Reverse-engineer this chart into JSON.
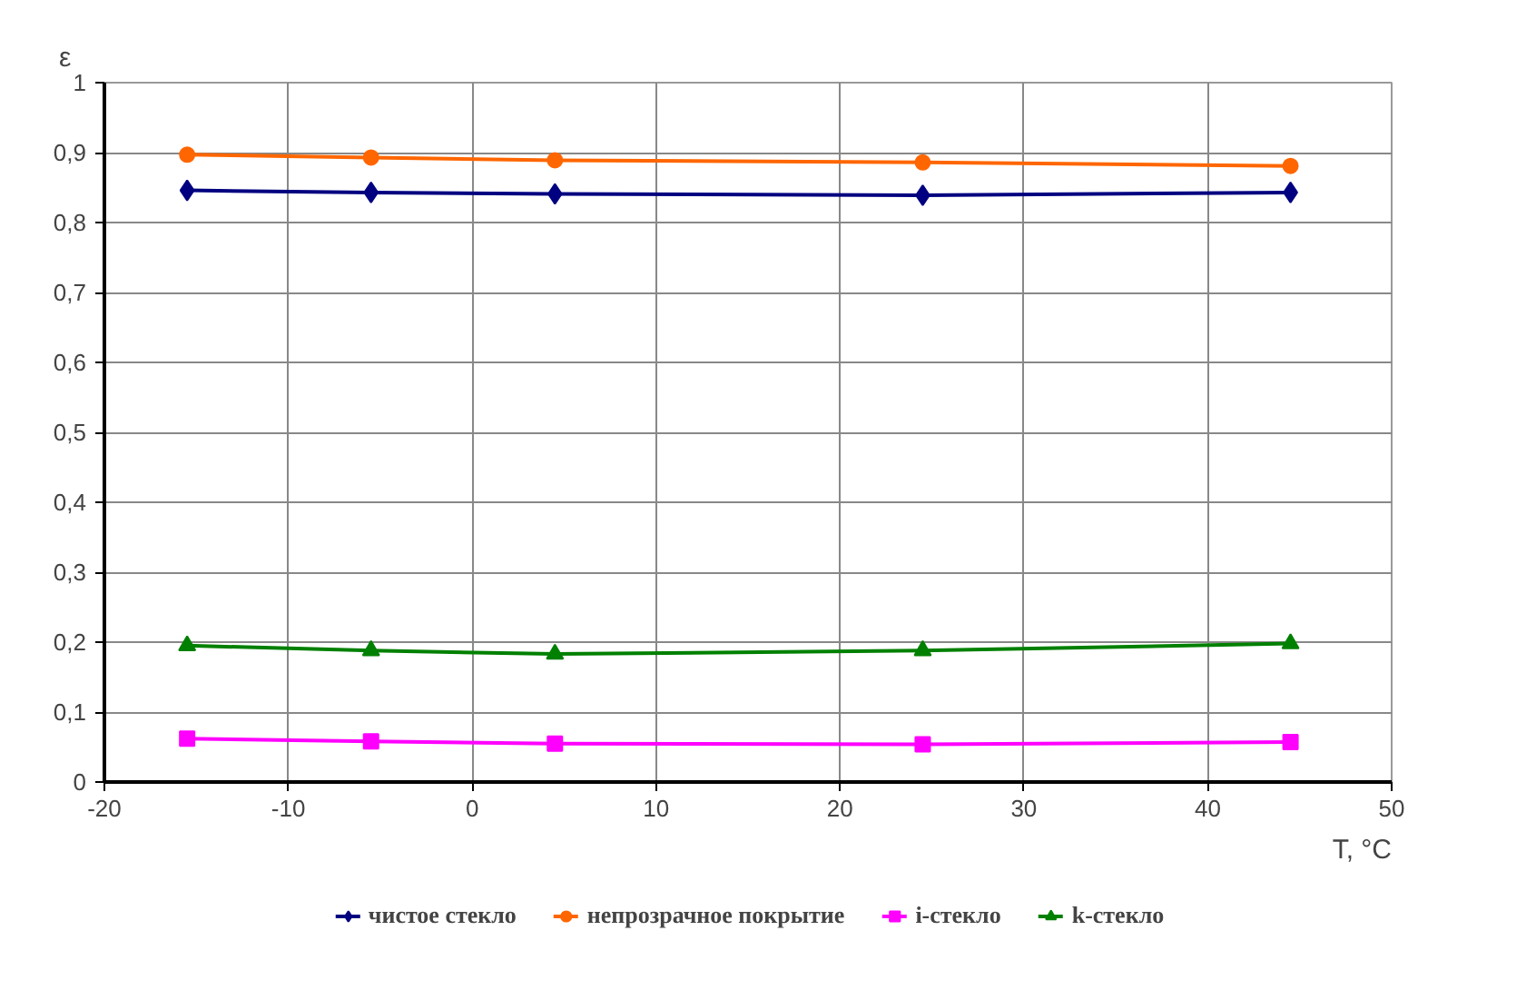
{
  "chart_data": {
    "type": "line",
    "xlabel": "T, °C",
    "ylabel": "ε",
    "x": [
      -15.5,
      -5.5,
      4.5,
      24.5,
      44.5
    ],
    "series": [
      {
        "name": "чистое стекло",
        "color": "#000080",
        "marker": "diamond",
        "values": [
          0.846,
          0.843,
          0.841,
          0.839,
          0.843
        ]
      },
      {
        "name": "непрозрачное покрытие",
        "color": "#ff6600",
        "marker": "circle",
        "values": [
          0.897,
          0.893,
          0.889,
          0.886,
          0.881
        ]
      },
      {
        "name": "i-стекло",
        "color": "#ff00ff",
        "marker": "square",
        "values": [
          0.062,
          0.058,
          0.055,
          0.054,
          0.057
        ]
      },
      {
        "name": "k-стекло",
        "color": "#008000",
        "marker": "triangle",
        "values": [
          0.195,
          0.188,
          0.183,
          0.188,
          0.198
        ]
      }
    ],
    "xlim": [
      -20,
      50
    ],
    "xticks": [
      -20,
      -10,
      0,
      10,
      20,
      30,
      40,
      50
    ],
    "ylim": [
      0,
      1
    ],
    "yticks": [
      0,
      {
        "value": 0.1,
        "label": "0,1"
      },
      {
        "value": 0.2,
        "label": "0,2"
      },
      {
        "value": 0.3,
        "label": "0,3"
      },
      {
        "value": 0.4,
        "label": "0,4"
      },
      {
        "value": 0.5,
        "label": "0,5"
      },
      {
        "value": 0.6,
        "label": "0,6"
      },
      {
        "value": 0.7,
        "label": "0,7"
      },
      {
        "value": 0.8,
        "label": "0,8"
      },
      {
        "value": 0.9,
        "label": "0,9"
      },
      1
    ],
    "grid": true,
    "legend": "bottom",
    "line_style": "solid"
  }
}
